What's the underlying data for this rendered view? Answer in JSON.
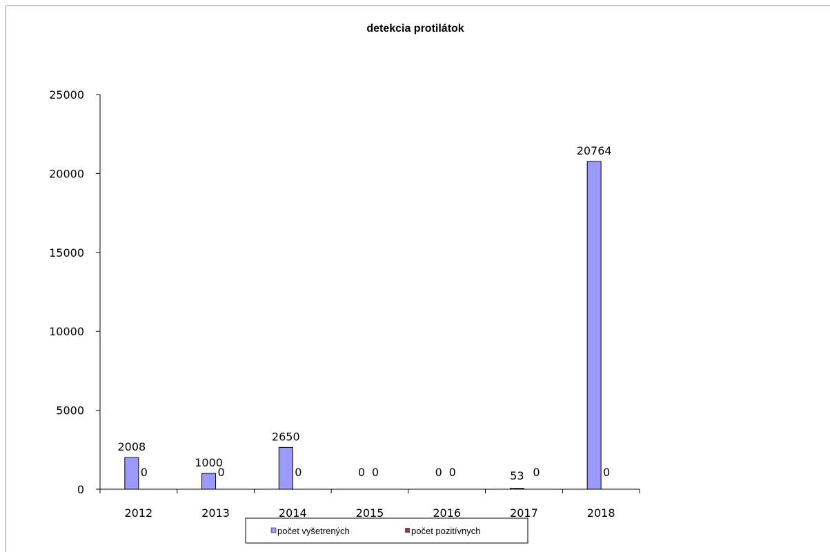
{
  "chart_data": {
    "type": "bar",
    "title": "detekcia protilátok",
    "categories": [
      "2012",
      "2013",
      "2014",
      "2015",
      "2016",
      "2017",
      "2018"
    ],
    "series": [
      {
        "name": "počet vyšetrených",
        "values": [
          2008,
          1000,
          2650,
          0,
          0,
          53,
          20764
        ],
        "color": "#9999ff"
      },
      {
        "name": "počet pozitívnych",
        "values": [
          0,
          0,
          0,
          0,
          0,
          0,
          0
        ],
        "color": "#993366"
      }
    ],
    "ylim": [
      0,
      25000
    ],
    "yticks": [
      "0",
      "5000",
      "10000",
      "15000",
      "20000",
      "25000"
    ],
    "grid": false,
    "legend": "bottom"
  }
}
